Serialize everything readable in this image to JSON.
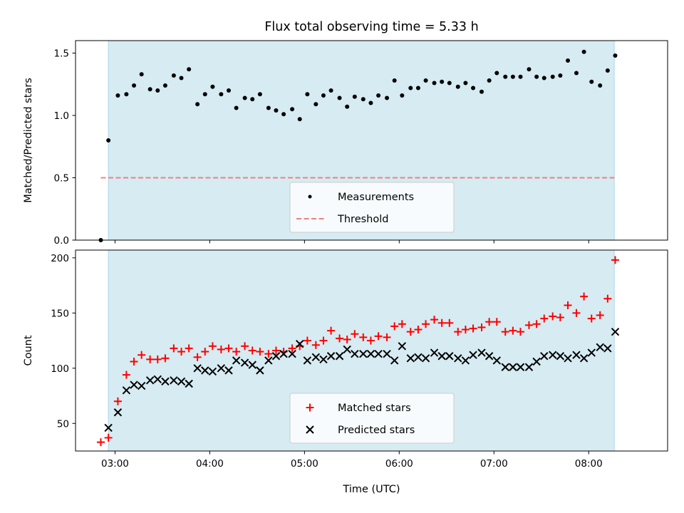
{
  "chart_data": [
    {
      "type": "scatter",
      "title": "Flux total observing time = 5.33 h",
      "xlabel": "",
      "ylabel": "Matched/Predicted stars",
      "x_unit": "hours UTC",
      "xlim": [
        2.583,
        8.833
      ],
      "ylim": [
        0,
        1.6
      ],
      "yticks": [
        0.0,
        0.5,
        1.0,
        1.5
      ],
      "ytick_labels": [
        "0.0",
        "0.5",
        "1.0",
        "1.5"
      ],
      "shaded_span": [
        2.93,
        8.27
      ],
      "shade_color": "#add8e6",
      "grid": false,
      "legend_position": "lower-center",
      "legend_entries": [
        "Measurements",
        "Threshold"
      ],
      "series": [
        {
          "name": "Measurements",
          "marker": "dot",
          "color": "#000000",
          "x": [
            2.85,
            2.93,
            3.03,
            3.12,
            3.2,
            3.28,
            3.37,
            3.45,
            3.53,
            3.62,
            3.7,
            3.78,
            3.87,
            3.95,
            4.03,
            4.12,
            4.2,
            4.28,
            4.37,
            4.45,
            4.53,
            4.62,
            4.7,
            4.78,
            4.87,
            4.95,
            5.03,
            5.12,
            5.2,
            5.28,
            5.37,
            5.45,
            5.53,
            5.62,
            5.7,
            5.78,
            5.87,
            5.95,
            6.03,
            6.12,
            6.2,
            6.28,
            6.37,
            6.45,
            6.53,
            6.62,
            6.7,
            6.78,
            6.87,
            6.95,
            7.03,
            7.12,
            7.2,
            7.28,
            7.37,
            7.45,
            7.53,
            7.62,
            7.7,
            7.78,
            7.87,
            7.95,
            8.03,
            8.12,
            8.2,
            8.28
          ],
          "y": [
            0.0,
            0.8,
            1.16,
            1.17,
            1.24,
            1.33,
            1.21,
            1.2,
            1.24,
            1.32,
            1.3,
            1.37,
            1.09,
            1.17,
            1.23,
            1.17,
            1.2,
            1.06,
            1.14,
            1.13,
            1.17,
            1.06,
            1.04,
            1.01,
            1.05,
            0.97,
            1.17,
            1.09,
            1.16,
            1.2,
            1.14,
            1.07,
            1.15,
            1.13,
            1.1,
            1.16,
            1.14,
            1.28,
            1.16,
            1.22,
            1.22,
            1.28,
            1.26,
            1.27,
            1.26,
            1.23,
            1.26,
            1.22,
            1.19,
            1.28,
            1.34,
            1.31,
            1.31,
            1.31,
            1.37,
            1.31,
            1.3,
            1.31,
            1.32,
            1.44,
            1.34,
            1.51,
            1.27,
            1.24,
            1.36,
            1.48
          ]
        },
        {
          "name": "Threshold",
          "line": "dashed",
          "color": "#f08080",
          "x": [
            2.85,
            8.28
          ],
          "y": [
            0.5,
            0.5
          ]
        }
      ]
    },
    {
      "type": "scatter",
      "title": "",
      "xlabel": "Time (UTC)",
      "ylabel": "Count",
      "x_unit": "hours UTC",
      "xlim": [
        2.583,
        8.833
      ],
      "ylim": [
        25,
        207
      ],
      "yticks": [
        50,
        100,
        150,
        200
      ],
      "ytick_labels": [
        "50",
        "100",
        "150",
        "200"
      ],
      "xticks": [
        3,
        4,
        5,
        6,
        7,
        8
      ],
      "xtick_labels": [
        "03:00",
        "04:00",
        "05:00",
        "06:00",
        "07:00",
        "08:00"
      ],
      "shaded_span": [
        2.93,
        8.27
      ],
      "shade_color": "#add8e6",
      "grid": false,
      "legend_position": "lower-center",
      "legend_entries": [
        "Matched stars",
        "Predicted stars"
      ],
      "series": [
        {
          "name": "Matched stars",
          "marker": "plus",
          "color": "#ff0000",
          "x": [
            2.85,
            2.93,
            3.03,
            3.12,
            3.2,
            3.28,
            3.37,
            3.45,
            3.53,
            3.62,
            3.7,
            3.78,
            3.87,
            3.95,
            4.03,
            4.12,
            4.2,
            4.28,
            4.37,
            4.45,
            4.53,
            4.62,
            4.7,
            4.78,
            4.87,
            4.95,
            5.03,
            5.12,
            5.2,
            5.28,
            5.37,
            5.45,
            5.53,
            5.62,
            5.7,
            5.78,
            5.87,
            5.95,
            6.03,
            6.12,
            6.2,
            6.28,
            6.37,
            6.45,
            6.53,
            6.62,
            6.7,
            6.78,
            6.87,
            6.95,
            7.03,
            7.12,
            7.2,
            7.28,
            7.37,
            7.45,
            7.53,
            7.62,
            7.7,
            7.78,
            7.87,
            7.95,
            8.03,
            8.12,
            8.2,
            8.28
          ],
          "y": [
            33,
            37,
            70,
            94,
            106,
            112,
            108,
            108,
            109,
            118,
            115,
            118,
            110,
            115,
            120,
            117,
            118,
            115,
            120,
            116,
            115,
            113,
            116,
            115,
            118,
            120,
            125,
            121,
            125,
            134,
            127,
            126,
            131,
            128,
            125,
            129,
            128,
            138,
            140,
            133,
            135,
            140,
            144,
            141,
            141,
            133,
            135,
            136,
            137,
            142,
            142,
            133,
            134,
            133,
            139,
            140,
            145,
            147,
            146,
            157,
            150,
            165,
            145,
            148,
            163,
            198
          ]
        },
        {
          "name": "Predicted stars",
          "marker": "x",
          "color": "#000000",
          "x": [
            2.85,
            2.93,
            3.03,
            3.12,
            3.2,
            3.28,
            3.37,
            3.45,
            3.53,
            3.62,
            3.7,
            3.78,
            3.87,
            3.95,
            4.03,
            4.12,
            4.2,
            4.28,
            4.37,
            4.45,
            4.53,
            4.62,
            4.7,
            4.78,
            4.87,
            4.95,
            5.03,
            5.12,
            5.2,
            5.28,
            5.37,
            5.45,
            5.53,
            5.62,
            5.7,
            5.78,
            5.87,
            5.95,
            6.03,
            6.12,
            6.2,
            6.28,
            6.37,
            6.45,
            6.53,
            6.62,
            6.7,
            6.78,
            6.87,
            6.95,
            7.03,
            7.12,
            7.2,
            7.28,
            7.37,
            7.45,
            7.53,
            7.62,
            7.7,
            7.78,
            7.87,
            7.95,
            8.03,
            8.12,
            8.2,
            8.28
          ],
          "y": [
            null,
            46,
            60,
            80,
            85,
            84,
            89,
            90,
            88,
            89,
            88,
            86,
            100,
            98,
            97,
            100,
            98,
            107,
            105,
            103,
            98,
            107,
            111,
            113,
            113,
            122,
            107,
            110,
            108,
            111,
            111,
            117,
            113,
            113,
            113,
            113,
            113,
            107,
            120,
            109,
            110,
            109,
            114,
            111,
            111,
            109,
            107,
            112,
            114,
            111,
            107,
            101,
            101,
            101,
            101,
            106,
            111,
            112,
            111,
            109,
            112,
            109,
            114,
            119,
            118,
            133
          ]
        }
      ]
    }
  ]
}
